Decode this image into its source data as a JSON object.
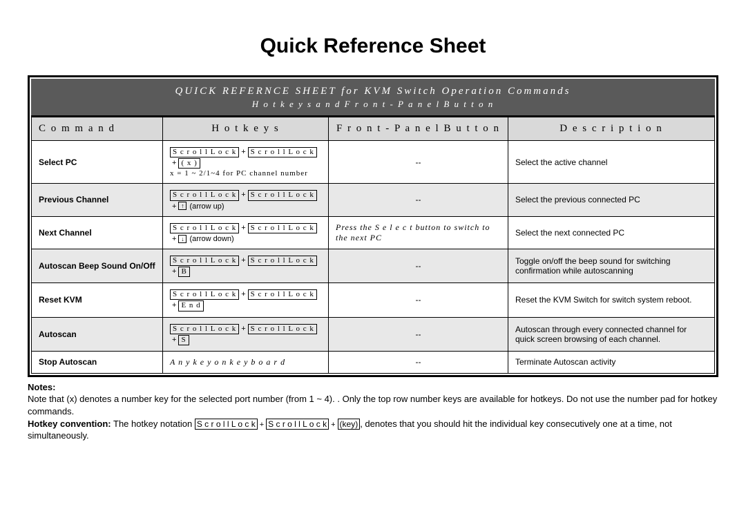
{
  "title": "Quick Reference Sheet",
  "banner": {
    "line1": "QUICK   REFERNCE   SHEET for  KVM   Switch   Operation   Commands",
    "line2": "H o t k e y s  a n d   F r o n t - P a n e l  B u t t o n"
  },
  "columns": [
    "C o m m a n d",
    "H o t k e y s",
    "F r o n t - P a n e l  B u t t o n",
    "D e s c r i p t i o n"
  ],
  "keys": {
    "scroll_lock": "S c r o l l  L o c k",
    "x": "( x )",
    "arrow_up": "↑",
    "arrow_down": "↓",
    "B": "B",
    "End": "E n d",
    "S": "S",
    "key": "(key)"
  },
  "rows": [
    {
      "command": "Select PC",
      "hotkey_extra": "x = 1 ~ 2/1~4  for PC channel number",
      "hotkey_last_key": "( x )",
      "arrow": "",
      "arrow_note": "",
      "fpb": "--",
      "desc": "Select the active channel",
      "shade": "alt"
    },
    {
      "command": "Previous Channel",
      "hotkey_extra": "",
      "hotkey_last_key": "",
      "arrow": "↑",
      "arrow_note": "(arrow up)",
      "fpb": "--",
      "desc": "Select the previous connected PC",
      "shade": "shade"
    },
    {
      "command": "Next Channel",
      "hotkey_extra": "",
      "hotkey_last_key": "",
      "arrow": "↓",
      "arrow_note": "(arrow down)",
      "fpb_italic": "Press the S e l e c t   button to switch to the next PC",
      "desc": "Select the next  connected PC",
      "shade": "alt"
    },
    {
      "command": "Autoscan Beep Sound On/Off",
      "hotkey_extra": "",
      "hotkey_last_key": "B",
      "arrow": "",
      "arrow_note": "",
      "fpb": "--",
      "desc": "Toggle on/off the beep sound for switching confirmation while autoscanning",
      "shade": "shade"
    },
    {
      "command": "Reset KVM",
      "hotkey_extra": "",
      "hotkey_last_key": "E n d",
      "arrow": "",
      "arrow_note": "",
      "fpb": "--",
      "desc": "Reset the KVM Switch for switch system reboot.",
      "shade": "alt"
    },
    {
      "command": "Autoscan",
      "hotkey_extra": "",
      "hotkey_last_key": "S",
      "arrow": "",
      "arrow_note": "",
      "fpb": "--",
      "desc": "Autoscan through every connected channel for quick screen browsing of each channel.",
      "shade": "shade"
    },
    {
      "command": "Stop Autoscan",
      "hotkey_plain_italic": "A n y  k e y  o n  k e y b o a r d",
      "fpb": "--",
      "desc": "Terminate Autoscan activity",
      "shade": "alt"
    }
  ],
  "notes": {
    "heading": "Notes:",
    "line1_a": "Note that (x) denotes a number key for the selected port number (from 1 ~ 4). . Only the top row number keys are available for hotkeys. Do not use the number pad for hotkey commands.",
    "line2_label": "Hotkey convention:",
    "line2_a": " The hotkey notation ",
    "line2_b": ", denotes that you should hit the individual key consecutively one at a time, not simultaneously."
  },
  "colors": {
    "banner_bg": "#5a5a5a",
    "header_bg": "#d9d9d9",
    "shade_bg": "#e8e8e8",
    "border": "#000000",
    "page_bg": "#ffffff"
  }
}
